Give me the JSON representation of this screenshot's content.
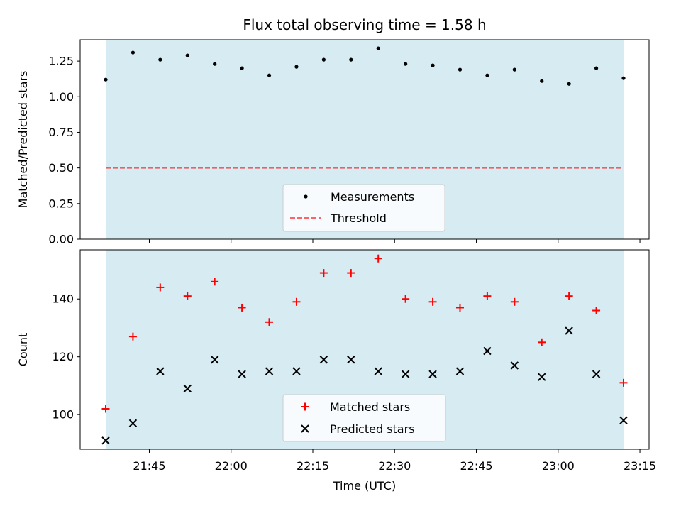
{
  "chart_data": [
    {
      "type": "scatter",
      "title": "Flux total observing time = 1.58 h",
      "xlabel": "",
      "ylabel": "Matched/Predicted stars",
      "ylim": [
        0,
        1.4
      ],
      "yticks": [
        "0.00",
        "0.25",
        "0.50",
        "0.75",
        "1.00",
        "1.25"
      ],
      "shaded_span": [
        "21:37",
        "23:12"
      ],
      "shade_color": "#add8e6",
      "legend_position": "lower center",
      "threshold": {
        "name": "Threshold",
        "y": 0.5,
        "color": "#ff0000",
        "style": "dashed"
      },
      "series": [
        {
          "name": "Measurements",
          "marker": "dot",
          "color": "#000000",
          "x": [
            "21:37",
            "21:42",
            "21:47",
            "21:52",
            "21:57",
            "22:02",
            "22:07",
            "22:12",
            "22:17",
            "22:22",
            "22:27",
            "22:32",
            "22:37",
            "22:42",
            "22:47",
            "22:52",
            "22:57",
            "23:02",
            "23:07",
            "23:12"
          ],
          "values": [
            1.12,
            1.31,
            1.26,
            1.29,
            1.23,
            1.2,
            1.15,
            1.21,
            1.26,
            1.26,
            1.34,
            1.23,
            1.22,
            1.19,
            1.15,
            1.19,
            1.11,
            1.09,
            1.2,
            1.13
          ]
        }
      ]
    },
    {
      "type": "scatter",
      "xlabel": "Time (UTC)",
      "ylabel": "Count",
      "ylim": [
        88,
        157
      ],
      "xticks": [
        "21:45",
        "22:00",
        "22:15",
        "22:30",
        "22:45",
        "23:00",
        "23:15"
      ],
      "yticks": [
        "100",
        "120",
        "140"
      ],
      "shaded_span": [
        "21:37",
        "23:12"
      ],
      "shade_color": "#add8e6",
      "legend_position": "lower center",
      "series": [
        {
          "name": "Matched stars",
          "marker": "plus",
          "color": "#ff0000",
          "x": [
            "21:37",
            "21:42",
            "21:47",
            "21:52",
            "21:57",
            "22:02",
            "22:07",
            "22:12",
            "22:17",
            "22:22",
            "22:27",
            "22:32",
            "22:37",
            "22:42",
            "22:47",
            "22:52",
            "22:57",
            "23:02",
            "23:07",
            "23:12"
          ],
          "values": [
            102,
            127,
            144,
            141,
            146,
            137,
            132,
            139,
            149,
            149,
            154,
            140,
            139,
            137,
            141,
            139,
            125,
            141,
            136,
            111
          ]
        },
        {
          "name": "Predicted stars",
          "marker": "x",
          "color": "#000000",
          "x": [
            "21:37",
            "21:42",
            "21:47",
            "21:52",
            "21:57",
            "22:02",
            "22:07",
            "22:12",
            "22:17",
            "22:22",
            "22:27",
            "22:32",
            "22:37",
            "22:42",
            "22:47",
            "22:52",
            "22:57",
            "23:02",
            "23:07",
            "23:12"
          ],
          "values": [
            91,
            97,
            115,
            109,
            119,
            114,
            115,
            115,
            119,
            119,
            115,
            114,
            114,
            115,
            122,
            117,
            113,
            129,
            114,
            98
          ]
        }
      ]
    }
  ]
}
